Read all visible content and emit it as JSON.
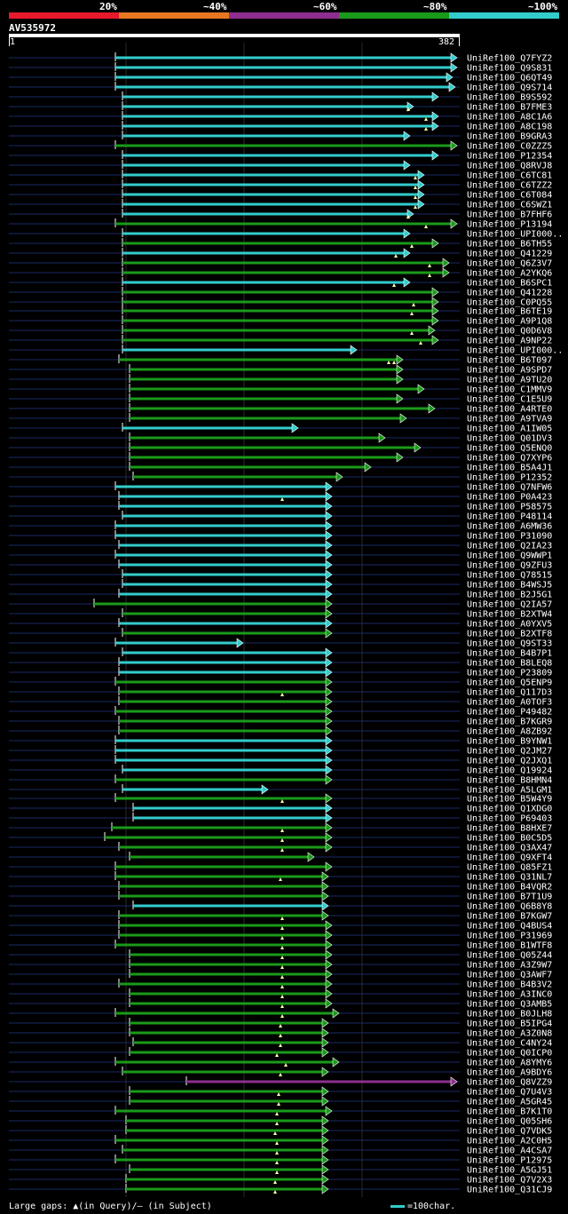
{
  "legend": {
    "labels": [
      "20%",
      "~40%",
      "~60%",
      "~80%",
      "~100%"
    ],
    "colors": [
      "#e8192a",
      "#e87722",
      "#8e2e8e",
      "#1a9a1a",
      "#33cccc"
    ]
  },
  "query": {
    "name": "AV535972",
    "start": "1",
    "end": "382"
  },
  "footer": {
    "gaps": "Large gaps: ▲(in Query)/– (in Subject)",
    "scale": "=100char."
  },
  "hits": [
    {
      "label": "UniRef100_Q7FYZ2",
      "x1": 130,
      "x2": 515,
      "color": "#33cccc",
      "marks": []
    },
    {
      "label": "UniRef100_Q9S831",
      "x1": 130,
      "x2": 515,
      "color": "#33cccc",
      "marks": []
    },
    {
      "label": "UniRef100_Q6QT49",
      "x1": 130,
      "x2": 510,
      "color": "#33cccc",
      "marks": []
    },
    {
      "label": "UniRef100_Q9S714",
      "x1": 130,
      "x2": 513,
      "color": "#33cccc",
      "marks": []
    },
    {
      "label": "UniRef100_B9S592",
      "x1": 138,
      "x2": 494,
      "color": "#33cccc",
      "marks": []
    },
    {
      "label": "UniRef100_B7FME3",
      "x1": 138,
      "x2": 466,
      "color": "#33cccc",
      "marks": [
        460
      ]
    },
    {
      "label": "UniRef100_A8C1A6",
      "x1": 138,
      "x2": 494,
      "color": "#33cccc",
      "marks": [
        480
      ]
    },
    {
      "label": "UniRef100_A8C198",
      "x1": 138,
      "x2": 494,
      "color": "#33cccc",
      "marks": [
        480
      ]
    },
    {
      "label": "UniRef100_B9GRA3",
      "x1": 138,
      "x2": 462,
      "color": "#33cccc",
      "marks": []
    },
    {
      "label": "UniRef100_C0ZZZ5",
      "x1": 130,
      "x2": 515,
      "color": "#1a9a1a",
      "marks": []
    },
    {
      "label": "UniRef100_P12354",
      "x1": 138,
      "x2": 494,
      "color": "#33cccc",
      "marks": []
    },
    {
      "label": "UniRef100_Q8RVJ8",
      "x1": 138,
      "x2": 462,
      "color": "#33cccc",
      "marks": []
    },
    {
      "label": "UniRef100_C6TC81",
      "x1": 138,
      "x2": 478,
      "color": "#33cccc",
      "marks": [
        468
      ]
    },
    {
      "label": "UniRef100_C6TZZ2",
      "x1": 138,
      "x2": 478,
      "color": "#33cccc",
      "marks": [
        468
      ]
    },
    {
      "label": "UniRef100_C6T084",
      "x1": 138,
      "x2": 478,
      "color": "#33cccc",
      "marks": [
        468
      ]
    },
    {
      "label": "UniRef100_C6SWZ1",
      "x1": 138,
      "x2": 478,
      "color": "#33cccc",
      "marks": [
        468
      ]
    },
    {
      "label": "UniRef100_B7FHF6",
      "x1": 138,
      "x2": 466,
      "color": "#33cccc",
      "marks": [
        460
      ]
    },
    {
      "label": "UniRef100_P13194",
      "x1": 130,
      "x2": 515,
      "color": "#1a9a1a",
      "marks": [
        480
      ]
    },
    {
      "label": "UniRef100_UPI000..",
      "x1": 138,
      "x2": 462,
      "color": "#33cccc",
      "marks": []
    },
    {
      "label": "UniRef100_B6TH55",
      "x1": 138,
      "x2": 494,
      "color": "#1a9a1a",
      "marks": [
        464
      ]
    },
    {
      "label": "UniRef100_Q41229",
      "x1": 138,
      "x2": 462,
      "color": "#33cccc",
      "marks": [
        446
      ]
    },
    {
      "label": "UniRef100_Q6Z3V7",
      "x1": 138,
      "x2": 506,
      "color": "#1a9a1a",
      "marks": [
        484
      ]
    },
    {
      "label": "UniRef100_A2YKQ6",
      "x1": 138,
      "x2": 506,
      "color": "#1a9a1a",
      "marks": [
        484
      ]
    },
    {
      "label": "UniRef100_B6SPC1",
      "x1": 138,
      "x2": 462,
      "color": "#33cccc",
      "marks": [
        444
      ]
    },
    {
      "label": "UniRef100_Q41228",
      "x1": 138,
      "x2": 494,
      "color": "#1a9a1a",
      "marks": []
    },
    {
      "label": "UniRef100_C0PQ55",
      "x1": 138,
      "x2": 494,
      "color": "#1a9a1a",
      "marks": [
        466
      ]
    },
    {
      "label": "UniRef100_B6TE19",
      "x1": 138,
      "x2": 494,
      "color": "#1a9a1a",
      "marks": [
        464
      ]
    },
    {
      "label": "UniRef100_A9P1Q8",
      "x1": 138,
      "x2": 494,
      "color": "#1a9a1a",
      "marks": []
    },
    {
      "label": "UniRef100_Q0D6V8",
      "x1": 138,
      "x2": 490,
      "color": "#1a9a1a",
      "marks": [
        464
      ]
    },
    {
      "label": "UniRef100_A9NP22",
      "x1": 138,
      "x2": 494,
      "color": "#1a9a1a",
      "marks": [
        474
      ]
    },
    {
      "label": "UniRef100_UPI000..",
      "x1": 138,
      "x2": 402,
      "color": "#33cccc",
      "marks": []
    },
    {
      "label": "UniRef100_B6T097",
      "x1": 134,
      "x2": 454,
      "color": "#1a9a1a",
      "marks": [
        438,
        444
      ]
    },
    {
      "label": "UniRef100_A9SPD7",
      "x1": 146,
      "x2": 454,
      "color": "#1a9a1a",
      "marks": []
    },
    {
      "label": "UniRef100_A9TU20",
      "x1": 146,
      "x2": 454,
      "color": "#1a9a1a",
      "marks": []
    },
    {
      "label": "UniRef100_C1MMV9",
      "x1": 146,
      "x2": 478,
      "color": "#1a9a1a",
      "marks": []
    },
    {
      "label": "UniRef100_C1E5U9",
      "x1": 146,
      "x2": 454,
      "color": "#1a9a1a",
      "marks": []
    },
    {
      "label": "UniRef100_A4RTE0",
      "x1": 146,
      "x2": 490,
      "color": "#1a9a1a",
      "marks": []
    },
    {
      "label": "UniRef100_A9TVA9",
      "x1": 146,
      "x2": 458,
      "color": "#1a9a1a",
      "marks": []
    },
    {
      "label": "UniRef100_A1IW05",
      "x1": 138,
      "x2": 336,
      "color": "#33cccc",
      "marks": []
    },
    {
      "label": "UniRef100_Q01DV3",
      "x1": 146,
      "x2": 434,
      "color": "#1a9a1a",
      "marks": []
    },
    {
      "label": "UniRef100_Q5ENQ0",
      "x1": 146,
      "x2": 474,
      "color": "#1a9a1a",
      "marks": []
    },
    {
      "label": "UniRef100_Q7XYP6",
      "x1": 146,
      "x2": 454,
      "color": "#1a9a1a",
      "marks": []
    },
    {
      "label": "UniRef100_B5A4J1",
      "x1": 146,
      "x2": 418,
      "color": "#1a9a1a",
      "marks": []
    },
    {
      "label": "UniRef100_P12352",
      "x1": 150,
      "x2": 386,
      "color": "#1a9a1a",
      "marks": []
    },
    {
      "label": "UniRef100_Q7NFW6",
      "x1": 130,
      "x2": 374,
      "color": "#33cccc",
      "marks": []
    },
    {
      "label": "UniRef100_P0A423",
      "x1": 134,
      "x2": 374,
      "color": "#33cccc",
      "marks": [
        318
      ]
    },
    {
      "label": "UniRef100_P58575",
      "x1": 134,
      "x2": 374,
      "color": "#33cccc",
      "marks": []
    },
    {
      "label": "UniRef100_P48114",
      "x1": 138,
      "x2": 374,
      "color": "#33cccc",
      "marks": []
    },
    {
      "label": "UniRef100_A6MW36",
      "x1": 130,
      "x2": 374,
      "color": "#33cccc",
      "marks": []
    },
    {
      "label": "UniRef100_P31090",
      "x1": 130,
      "x2": 374,
      "color": "#33cccc",
      "marks": []
    },
    {
      "label": "UniRef100_Q2IA23",
      "x1": 134,
      "x2": 374,
      "color": "#33cccc",
      "marks": []
    },
    {
      "label": "UniRef100_Q9WWP1",
      "x1": 130,
      "x2": 374,
      "color": "#33cccc",
      "marks": []
    },
    {
      "label": "UniRef100_Q9ZFU3",
      "x1": 134,
      "x2": 374,
      "color": "#33cccc",
      "marks": []
    },
    {
      "label": "UniRef100_Q78515",
      "x1": 138,
      "x2": 374,
      "color": "#33cccc",
      "marks": []
    },
    {
      "label": "UniRef100_B4WSJ5",
      "x1": 138,
      "x2": 374,
      "color": "#33cccc",
      "marks": []
    },
    {
      "label": "UniRef100_B2J5G1",
      "x1": 134,
      "x2": 374,
      "color": "#33cccc",
      "marks": []
    },
    {
      "label": "UniRef100_Q2IA57",
      "x1": 106,
      "x2": 374,
      "color": "#1a9a1a",
      "marks": []
    },
    {
      "label": "UniRef100_B2XTW4",
      "x1": 138,
      "x2": 374,
      "color": "#1a9a1a",
      "marks": []
    },
    {
      "label": "UniRef100_A0YXV5",
      "x1": 134,
      "x2": 374,
      "color": "#33cccc",
      "marks": []
    },
    {
      "label": "UniRef100_B2XTF8",
      "x1": 138,
      "x2": 374,
      "color": "#1a9a1a",
      "marks": []
    },
    {
      "label": "UniRef100_Q9ST33",
      "x1": 130,
      "x2": 274,
      "color": "#33cccc",
      "marks": []
    },
    {
      "label": "UniRef100_B4B7P1",
      "x1": 138,
      "x2": 374,
      "color": "#33cccc",
      "marks": []
    },
    {
      "label": "UniRef100_B8LEQ8",
      "x1": 134,
      "x2": 374,
      "color": "#33cccc",
      "marks": []
    },
    {
      "label": "UniRef100_P23809",
      "x1": 134,
      "x2": 374,
      "color": "#33cccc",
      "marks": []
    },
    {
      "label": "UniRef100_Q5ENP9",
      "x1": 130,
      "x2": 374,
      "color": "#1a9a1a",
      "marks": []
    },
    {
      "label": "UniRef100_Q117D3",
      "x1": 134,
      "x2": 374,
      "color": "#1a9a1a",
      "marks": [
        318
      ]
    },
    {
      "label": "UniRef100_A0TOF3",
      "x1": 134,
      "x2": 374,
      "color": "#1a9a1a",
      "marks": []
    },
    {
      "label": "UniRef100_P49482",
      "x1": 130,
      "x2": 374,
      "color": "#1a9a1a",
      "marks": []
    },
    {
      "label": "UniRef100_B7KGR9",
      "x1": 134,
      "x2": 374,
      "color": "#1a9a1a",
      "marks": []
    },
    {
      "label": "UniRef100_A8ZB92",
      "x1": 134,
      "x2": 374,
      "color": "#1a9a1a",
      "marks": []
    },
    {
      "label": "UniRef100_B9YNW1",
      "x1": 130,
      "x2": 374,
      "color": "#33cccc",
      "marks": []
    },
    {
      "label": "UniRef100_Q2JM27",
      "x1": 130,
      "x2": 374,
      "color": "#33cccc",
      "marks": []
    },
    {
      "label": "UniRef100_Q2JXQ1",
      "x1": 130,
      "x2": 374,
      "color": "#33cccc",
      "marks": []
    },
    {
      "label": "UniRef100_Q19924",
      "x1": 138,
      "x2": 374,
      "color": "#33cccc",
      "marks": []
    },
    {
      "label": "UniRef100_B8HMN4",
      "x1": 130,
      "x2": 374,
      "color": "#1a9a1a",
      "marks": []
    },
    {
      "label": "UniRef100_A5LGM1",
      "x1": 138,
      "x2": 302,
      "color": "#33cccc",
      "marks": []
    },
    {
      "label": "UniRef100_B5W4Y9",
      "x1": 130,
      "x2": 374,
      "color": "#1a9a1a",
      "marks": [
        318
      ]
    },
    {
      "label": "UniRef100_Q1XDG0",
      "x1": 150,
      "x2": 374,
      "color": "#33cccc",
      "marks": []
    },
    {
      "label": "UniRef100_P69403",
      "x1": 150,
      "x2": 374,
      "color": "#33cccc",
      "marks": []
    },
    {
      "label": "UniRef100_B8HXE7",
      "x1": 126,
      "x2": 374,
      "color": "#1a9a1a",
      "marks": [
        318
      ]
    },
    {
      "label": "UniRef100_B0C5D5",
      "x1": 118,
      "x2": 374,
      "color": "#1a9a1a",
      "marks": [
        318
      ]
    },
    {
      "label": "UniRef100_Q3AX47",
      "x1": 134,
      "x2": 374,
      "color": "#1a9a1a",
      "marks": [
        318
      ]
    },
    {
      "label": "UniRef100_Q9XFT4",
      "x1": 146,
      "x2": 354,
      "color": "#1a9a1a",
      "marks": []
    },
    {
      "label": "UniRef100_Q85FZ1",
      "x1": 130,
      "x2": 374,
      "color": "#1a9a1a",
      "marks": []
    },
    {
      "label": "UniRef100_Q31NL7",
      "x1": 130,
      "x2": 370,
      "color": "#1a9a1a",
      "marks": [
        316
      ]
    },
    {
      "label": "UniRef100_B4VQR2",
      "x1": 134,
      "x2": 370,
      "color": "#1a9a1a",
      "marks": []
    },
    {
      "label": "UniRef100_B7T1U9",
      "x1": 134,
      "x2": 370,
      "color": "#1a9a1a",
      "marks": []
    },
    {
      "label": "UniRef100_Q6B8Y8",
      "x1": 150,
      "x2": 370,
      "color": "#33cccc",
      "marks": []
    },
    {
      "label": "UniRef100_B7KGW7",
      "x1": 134,
      "x2": 370,
      "color": "#1a9a1a",
      "marks": [
        318
      ]
    },
    {
      "label": "UniRef100_Q4BUS4",
      "x1": 134,
      "x2": 374,
      "color": "#1a9a1a",
      "marks": [
        318
      ]
    },
    {
      "label": "UniRef100_P31969",
      "x1": 134,
      "x2": 374,
      "color": "#1a9a1a",
      "marks": [
        318
      ]
    },
    {
      "label": "UniRef100_B1WTF8",
      "x1": 130,
      "x2": 374,
      "color": "#1a9a1a",
      "marks": [
        318
      ]
    },
    {
      "label": "UniRef100_Q05Z44",
      "x1": 146,
      "x2": 374,
      "color": "#1a9a1a",
      "marks": [
        318
      ]
    },
    {
      "label": "UniRef100_A3Z9W7",
      "x1": 146,
      "x2": 374,
      "color": "#1a9a1a",
      "marks": [
        318
      ]
    },
    {
      "label": "UniRef100_Q3AWF7",
      "x1": 146,
      "x2": 374,
      "color": "#1a9a1a",
      "marks": [
        318
      ]
    },
    {
      "label": "UniRef100_B4B3V2",
      "x1": 134,
      "x2": 374,
      "color": "#1a9a1a",
      "marks": [
        318
      ]
    },
    {
      "label": "UniRef100_A3INC0",
      "x1": 146,
      "x2": 374,
      "color": "#1a9a1a",
      "marks": [
        318
      ]
    },
    {
      "label": "UniRef100_Q3AMB5",
      "x1": 146,
      "x2": 374,
      "color": "#1a9a1a",
      "marks": [
        318
      ]
    },
    {
      "label": "UniRef100_B0JLH8",
      "x1": 130,
      "x2": 382,
      "color": "#1a9a1a",
      "marks": [
        318
      ]
    },
    {
      "label": "UniRef100_B5IPG4",
      "x1": 146,
      "x2": 370,
      "color": "#1a9a1a",
      "marks": [
        316
      ]
    },
    {
      "label": "UniRef100_A3Z0N8",
      "x1": 146,
      "x2": 370,
      "color": "#1a9a1a",
      "marks": [
        316
      ]
    },
    {
      "label": "UniRef100_C4NY24",
      "x1": 150,
      "x2": 370,
      "color": "#1a9a1a",
      "marks": [
        316
      ]
    },
    {
      "label": "UniRef100_Q0ICP0",
      "x1": 146,
      "x2": 370,
      "color": "#1a9a1a",
      "marks": [
        312
      ]
    },
    {
      "label": "UniRef100_A8YMY6",
      "x1": 130,
      "x2": 382,
      "color": "#1a9a1a",
      "marks": [
        322
      ]
    },
    {
      "label": "UniRef100_A9BDY6",
      "x1": 138,
      "x2": 370,
      "color": "#1a9a1a",
      "marks": [
        316
      ]
    },
    {
      "label": "UniRef100_Q8VZZ9",
      "x1": 210,
      "x2": 515,
      "color": "#8e2e8e",
      "marks": []
    },
    {
      "label": "UniRef100_Q7U4V3",
      "x1": 146,
      "x2": 370,
      "color": "#1a9a1a",
      "marks": [
        314
      ]
    },
    {
      "label": "UniRef100_A5GR45",
      "x1": 146,
      "x2": 370,
      "color": "#1a9a1a",
      "marks": [
        314
      ]
    },
    {
      "label": "UniRef100_B7K1T0",
      "x1": 130,
      "x2": 374,
      "color": "#1a9a1a",
      "marks": [
        312
      ]
    },
    {
      "label": "UniRef100_Q05SH6",
      "x1": 142,
      "x2": 370,
      "color": "#1a9a1a",
      "marks": [
        312
      ]
    },
    {
      "label": "UniRef100_Q7VDK5",
      "x1": 142,
      "x2": 370,
      "color": "#1a9a1a",
      "marks": [
        310
      ]
    },
    {
      "label": "UniRef100_A2C0H5",
      "x1": 130,
      "x2": 370,
      "color": "#1a9a1a",
      "marks": [
        312
      ]
    },
    {
      "label": "UniRef100_A4CSA7",
      "x1": 138,
      "x2": 370,
      "color": "#1a9a1a",
      "marks": [
        312
      ]
    },
    {
      "label": "UniRef100_P12975",
      "x1": 130,
      "x2": 370,
      "color": "#1a9a1a",
      "marks": [
        312
      ]
    },
    {
      "label": "UniRef100_A5GJ51",
      "x1": 146,
      "x2": 370,
      "color": "#1a9a1a",
      "marks": [
        312
      ]
    },
    {
      "label": "UniRef100_Q7V2X3",
      "x1": 142,
      "x2": 370,
      "color": "#1a9a1a",
      "marks": [
        310
      ]
    },
    {
      "label": "UniRef100_Q31CJ9",
      "x1": 142,
      "x2": 370,
      "color": "#1a9a1a",
      "marks": [
        310
      ]
    }
  ]
}
